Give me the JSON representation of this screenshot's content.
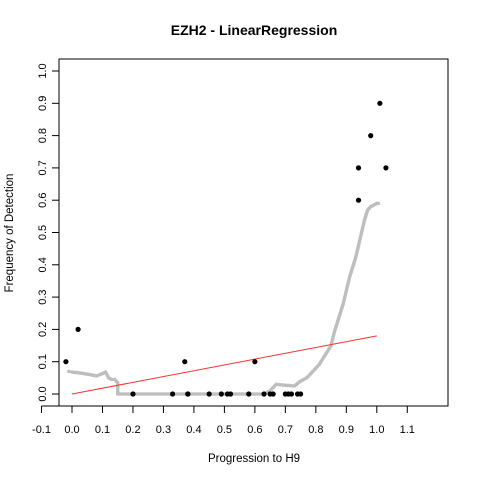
{
  "chart_data": {
    "type": "scatter",
    "title": "EZH2 - LinearRegression",
    "xlabel": "Progression to H9",
    "ylabel": "Frequency of Detection",
    "xlim": [
      -0.1,
      1.1
    ],
    "ylim": [
      0.0,
      1.0
    ],
    "x_ticks": [
      "-0.1",
      "0.0",
      "0.1",
      "0.2",
      "0.3",
      "0.4",
      "0.5",
      "0.6",
      "0.7",
      "0.8",
      "0.9",
      "1.0",
      "1.1"
    ],
    "y_ticks": [
      "0.0",
      "0.1",
      "0.2",
      "0.3",
      "0.4",
      "0.5",
      "0.6",
      "0.7",
      "0.8",
      "0.9",
      "1.0"
    ],
    "grid": false,
    "legend": "none",
    "series": [
      {
        "kind": "points",
        "color": "#000000",
        "x": [
          -0.02,
          0.02,
          0.2,
          0.33,
          0.37,
          0.38,
          0.38,
          0.45,
          0.49,
          0.51,
          0.52,
          0.58,
          0.6,
          0.63,
          0.65,
          0.66,
          0.7,
          0.71,
          0.72,
          0.74,
          0.75,
          0.94,
          0.94,
          0.98,
          1.01,
          1.03
        ],
        "y": [
          0.1,
          0.2,
          0.0,
          0.0,
          0.1,
          0.0,
          0.0,
          0.0,
          0.0,
          0.0,
          0.0,
          0.0,
          0.1,
          0.0,
          0.0,
          0.0,
          0.0,
          0.0,
          0.0,
          0.0,
          0.0,
          0.7,
          0.6,
          0.8,
          0.9,
          0.7
        ]
      },
      {
        "kind": "smooth",
        "color": "#bebebe",
        "x": [
          -0.01,
          0.0,
          0.02,
          0.04,
          0.06,
          0.08,
          0.1,
          0.11,
          0.12,
          0.13,
          0.14,
          0.15,
          0.15,
          0.2,
          0.25,
          0.3,
          0.35,
          0.4,
          0.45,
          0.5,
          0.55,
          0.6,
          0.63,
          0.65,
          0.67,
          0.7,
          0.73,
          0.75,
          0.77,
          0.79,
          0.81,
          0.83,
          0.85,
          0.86,
          0.87,
          0.88,
          0.89,
          0.9,
          0.91,
          0.92,
          0.93,
          0.94,
          0.95,
          0.96,
          0.97,
          0.98,
          0.99,
          1.0,
          1.005
        ],
        "y": [
          0.07,
          0.068,
          0.066,
          0.063,
          0.06,
          0.056,
          0.063,
          0.068,
          0.05,
          0.045,
          0.045,
          0.035,
          0.0,
          0.0,
          0.0,
          0.0,
          0.0,
          0.0,
          0.0,
          0.0,
          0.0,
          0.0,
          0.0,
          0.01,
          0.03,
          0.027,
          0.025,
          0.04,
          0.05,
          0.07,
          0.09,
          0.12,
          0.15,
          0.19,
          0.22,
          0.25,
          0.28,
          0.32,
          0.36,
          0.39,
          0.42,
          0.46,
          0.5,
          0.54,
          0.57,
          0.58,
          0.585,
          0.59,
          0.59
        ]
      },
      {
        "kind": "line",
        "color": "#ff3030",
        "x": [
          0.0,
          1.0
        ],
        "y": [
          0.0,
          0.18
        ]
      }
    ]
  }
}
